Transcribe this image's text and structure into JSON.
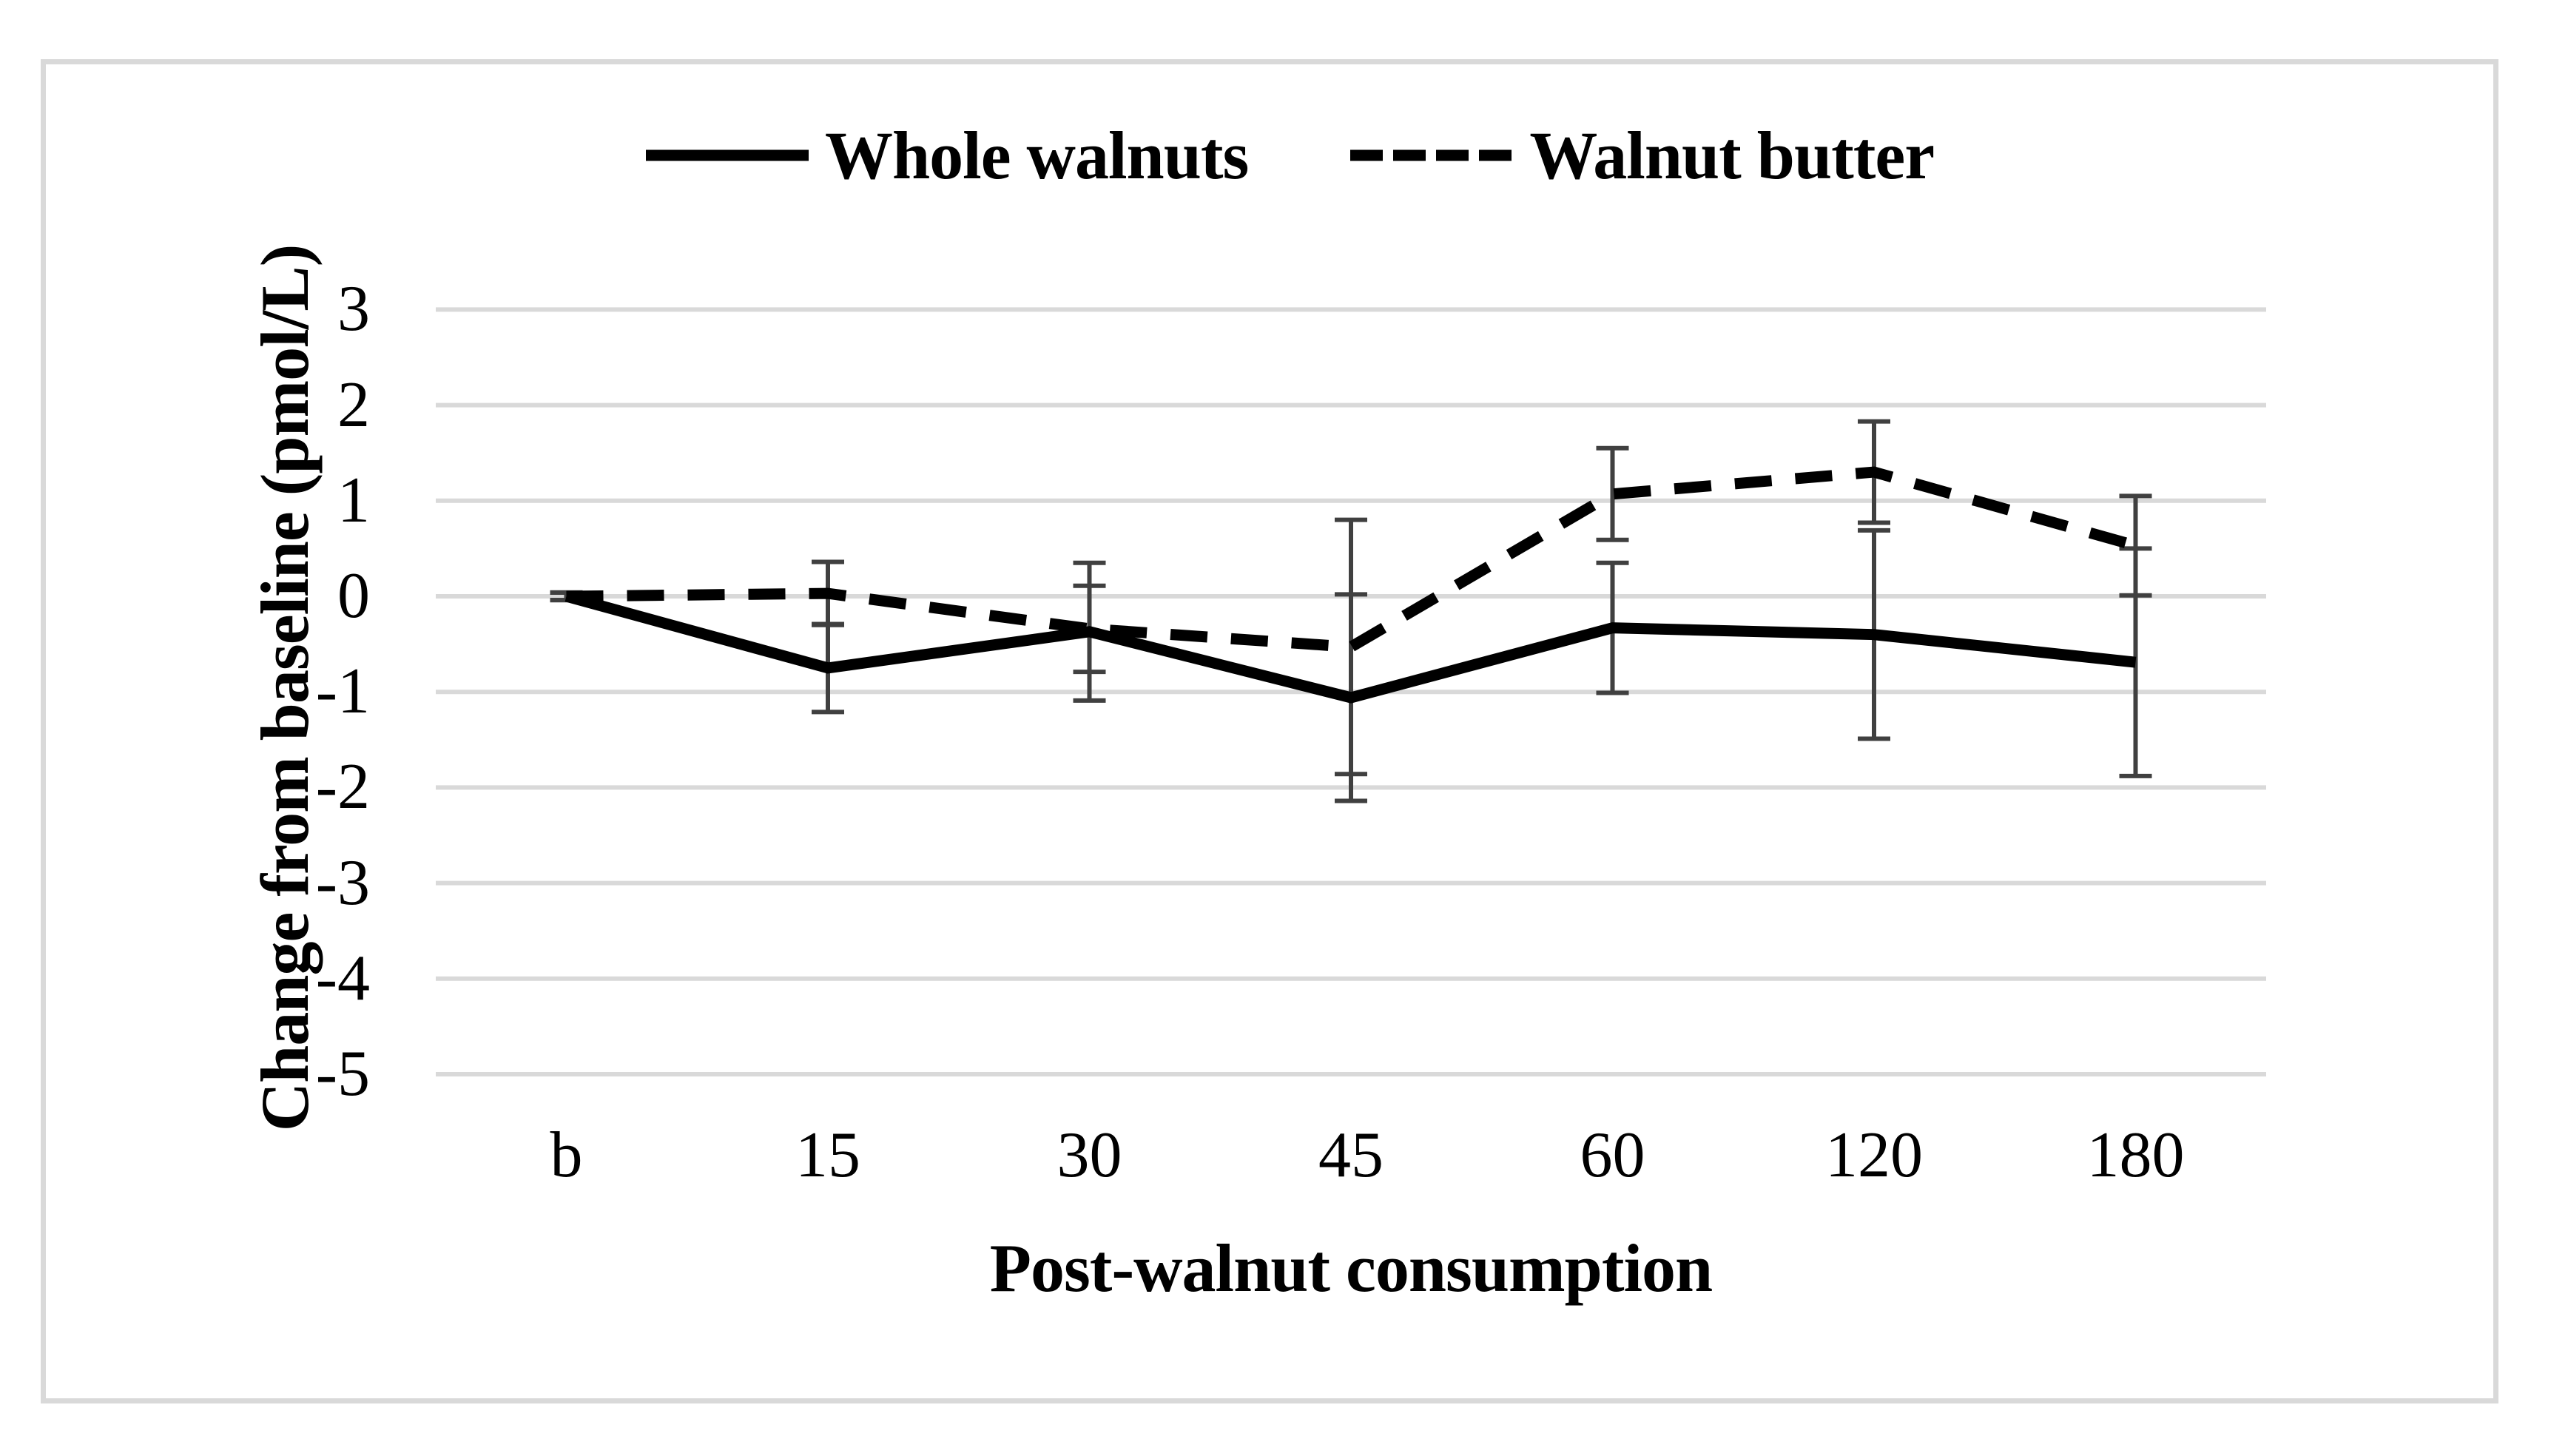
{
  "legend": {
    "items": [
      {
        "label": "Whole walnuts",
        "line_style": "solid"
      },
      {
        "label": "Walnut butter",
        "line_style": "dashed"
      }
    ]
  },
  "chart_data": {
    "type": "line",
    "categories": [
      "b",
      "15",
      "30",
      "45",
      "60",
      "120",
      "180"
    ],
    "series": [
      {
        "name": "Whole walnuts",
        "line_style": "solid",
        "values": [
          0,
          -0.75,
          -0.37,
          -1.06,
          -0.33,
          -0.4,
          -0.69
        ],
        "error": [
          0.04,
          0.46,
          0.72,
          1.08,
          0.68,
          1.09,
          1.19
        ]
      },
      {
        "name": "Walnut butter",
        "line_style": "dashed",
        "values": [
          0,
          0.03,
          -0.34,
          -0.53,
          1.07,
          1.3,
          0.53
        ],
        "error": [
          0.04,
          0.33,
          0.45,
          1.33,
          0.48,
          0.53,
          0.52
        ]
      }
    ],
    "title": "",
    "xlabel": "Post-walnut consumption",
    "ylabel": "Change from baseline (pmol/L)",
    "ylim": [
      -5,
      3
    ],
    "yticks": [
      3,
      2,
      1,
      0,
      -1,
      -2,
      -3,
      -4,
      -5
    ],
    "grid": true,
    "error_bars": true,
    "legend_position": "top-center"
  },
  "colors": {
    "background": "#ffffff",
    "figure_border": "#d9d9d9",
    "gridline": "#d9d9d9",
    "series_line": "#000000",
    "error_bar": "#404040",
    "text": "#000000"
  }
}
